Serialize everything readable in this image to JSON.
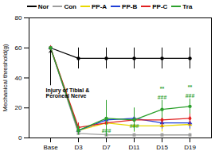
{
  "chart_data": {
    "type": "line",
    "y_label": "Mechanical threshold(g)",
    "categories": [
      "Base",
      "D3",
      "D7",
      "D11",
      "D15",
      "D19"
    ],
    "ylim": [
      0,
      80
    ],
    "yticks": [
      0,
      20,
      40,
      60,
      80
    ],
    "legend": "top",
    "series": [
      {
        "name": "Nor",
        "color": "#000000",
        "marker": "circle",
        "values": [
          60,
          53,
          53,
          53,
          53,
          53
        ],
        "errors": [
          0,
          7,
          7,
          7,
          7,
          7
        ]
      },
      {
        "name": "Con",
        "color": "#9e9e9e",
        "marker": "square",
        "values": [
          60,
          3,
          2,
          2,
          2,
          2
        ],
        "errors": [
          0,
          1,
          1,
          1,
          1,
          1
        ]
      },
      {
        "name": "PP-A",
        "color": "#e8d800",
        "marker": "triangle",
        "values": [
          60,
          5,
          10,
          8,
          8,
          9
        ],
        "errors": [
          0,
          2,
          4,
          4,
          4,
          4
        ]
      },
      {
        "name": "PP-B",
        "color": "#1f3fd6",
        "marker": "triangle",
        "values": [
          60,
          5,
          12,
          13,
          10,
          10
        ],
        "errors": [
          0,
          2,
          5,
          5,
          4,
          4
        ]
      },
      {
        "name": "PP-C",
        "color": "#e02020",
        "marker": "diamond",
        "values": [
          60,
          7,
          10,
          12,
          12,
          13
        ],
        "errors": [
          0,
          3,
          4,
          5,
          5,
          5
        ]
      },
      {
        "name": "Tra",
        "color": "#2ca02c",
        "marker": "circle",
        "values": [
          60,
          5,
          13,
          12,
          19,
          21
        ],
        "errors": [
          0,
          3,
          12,
          8,
          6,
          5
        ]
      }
    ],
    "annotations": [
      {
        "text": "Injury of Tibial &\nPeroneal Nerve",
        "x": "Base",
        "y": 30,
        "color": "#000000",
        "arrow_to": 60
      },
      {
        "text": "###",
        "x": "D7",
        "y": 5,
        "color": "#2ca02c"
      },
      {
        "text": "###",
        "x": "D11",
        "y": 8,
        "color": "#2ca02c"
      },
      {
        "text": "###",
        "x": "D15",
        "y": 27,
        "color": "#2ca02c"
      },
      {
        "text": "**",
        "x": "D15",
        "y": 33,
        "color": "#2ca02c"
      },
      {
        "text": "###",
        "x": "D19",
        "y": 28,
        "color": "#2ca02c"
      },
      {
        "text": "**",
        "x": "D19",
        "y": 34,
        "color": "#2ca02c"
      }
    ]
  }
}
